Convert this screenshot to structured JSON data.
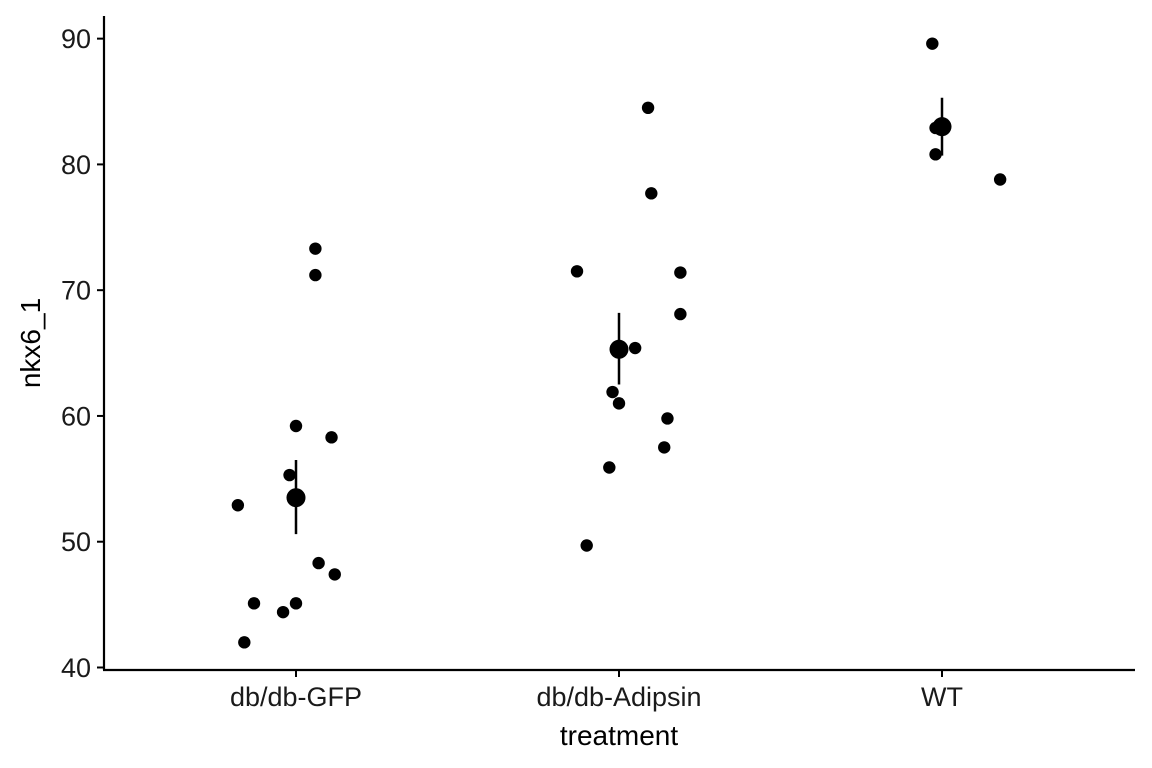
{
  "chart_data": {
    "type": "scatter",
    "xlabel": "treatment",
    "ylabel": "nkx6_1",
    "categories": [
      "db/db-GFP",
      "db/db-Adipsin",
      "WT"
    ],
    "ylim": [
      39.8,
      91.8
    ],
    "yticks": [
      40,
      50,
      60,
      70,
      80,
      90
    ],
    "grid": false,
    "legend": "none",
    "point_color": "#000000",
    "points": [
      {
        "category": "db/db-GFP",
        "jitter": -0.18,
        "y": 52.9
      },
      {
        "category": "db/db-GFP",
        "jitter": 0.06,
        "y": 73.3
      },
      {
        "category": "db/db-GFP",
        "jitter": 0.06,
        "y": 71.2
      },
      {
        "category": "db/db-GFP",
        "jitter": 0.0,
        "y": 59.2
      },
      {
        "category": "db/db-GFP",
        "jitter": 0.11,
        "y": 58.3
      },
      {
        "category": "db/db-GFP",
        "jitter": -0.02,
        "y": 55.3
      },
      {
        "category": "db/db-GFP",
        "jitter": 0.07,
        "y": 48.3
      },
      {
        "category": "db/db-GFP",
        "jitter": 0.12,
        "y": 47.4
      },
      {
        "category": "db/db-GFP",
        "jitter": -0.13,
        "y": 45.1
      },
      {
        "category": "db/db-GFP",
        "jitter": 0.0,
        "y": 45.1
      },
      {
        "category": "db/db-GFP",
        "jitter": -0.04,
        "y": 44.4
      },
      {
        "category": "db/db-GFP",
        "jitter": -0.16,
        "y": 42.0
      },
      {
        "category": "db/db-Adipsin",
        "jitter": 0.09,
        "y": 84.5
      },
      {
        "category": "db/db-Adipsin",
        "jitter": 0.1,
        "y": 77.7
      },
      {
        "category": "db/db-Adipsin",
        "jitter": -0.13,
        "y": 71.5
      },
      {
        "category": "db/db-Adipsin",
        "jitter": 0.19,
        "y": 71.4
      },
      {
        "category": "db/db-Adipsin",
        "jitter": 0.19,
        "y": 68.1
      },
      {
        "category": "db/db-Adipsin",
        "jitter": 0.05,
        "y": 65.4
      },
      {
        "category": "db/db-Adipsin",
        "jitter": -0.02,
        "y": 61.9
      },
      {
        "category": "db/db-Adipsin",
        "jitter": 0.0,
        "y": 61.0
      },
      {
        "category": "db/db-Adipsin",
        "jitter": 0.15,
        "y": 59.8
      },
      {
        "category": "db/db-Adipsin",
        "jitter": 0.14,
        "y": 57.5
      },
      {
        "category": "db/db-Adipsin",
        "jitter": -0.03,
        "y": 55.9
      },
      {
        "category": "db/db-Adipsin",
        "jitter": -0.1,
        "y": 49.7
      },
      {
        "category": "WT",
        "jitter": -0.03,
        "y": 89.6
      },
      {
        "category": "WT",
        "jitter": -0.02,
        "y": 82.9
      },
      {
        "category": "WT",
        "jitter": -0.02,
        "y": 80.8
      },
      {
        "category": "WT",
        "jitter": 0.18,
        "y": 78.8
      }
    ],
    "summary": [
      {
        "category": "db/db-GFP",
        "mean": 53.5,
        "lower": 50.6,
        "upper": 56.5
      },
      {
        "category": "db/db-Adipsin",
        "mean": 65.3,
        "lower": 62.5,
        "upper": 68.2
      },
      {
        "category": "WT",
        "mean": 83.0,
        "lower": 80.7,
        "upper": 85.3
      }
    ]
  }
}
